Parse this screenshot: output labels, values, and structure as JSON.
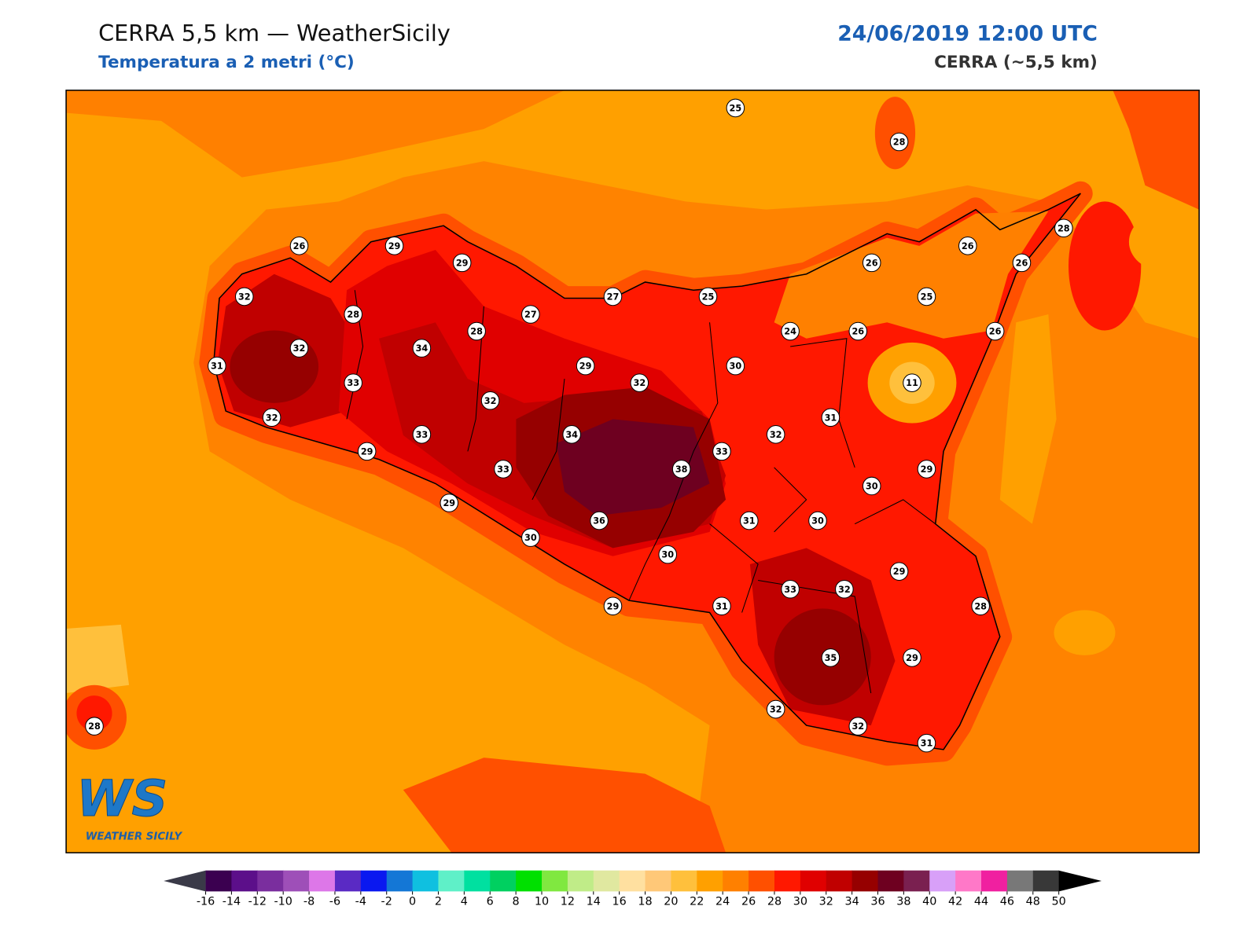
{
  "header": {
    "title": "CERRA 5,5 km — WeatherSicily",
    "subtitle": "Temperatura a 2 metri (°C)",
    "datetime": "24/06/2019 12:00 UTC",
    "model": "CERRA (~5,5 km)"
  },
  "map": {
    "stations": [
      25,
      28,
      26,
      29,
      29,
      28,
      26,
      26,
      26,
      32,
      27,
      25,
      25,
      28,
      27,
      28,
      24,
      26,
      26,
      32,
      34,
      31,
      29,
      30,
      33,
      32,
      11,
      32,
      32,
      31,
      33,
      34,
      32,
      33,
      29,
      33,
      38,
      29,
      30,
      29,
      36,
      31,
      30,
      30,
      30,
      29,
      33,
      32,
      29,
      31,
      28,
      35,
      29,
      28,
      32,
      32,
      31
    ]
  },
  "logo": {
    "mark": "WS",
    "name": "WEATHER SICILY"
  },
  "colorbar": {
    "ticks": [
      -16,
      -14,
      -12,
      -10,
      -8,
      -6,
      -4,
      -2,
      0,
      2,
      4,
      6,
      8,
      10,
      12,
      14,
      16,
      18,
      20,
      22,
      24,
      26,
      28,
      30,
      32,
      34,
      36,
      38,
      40,
      42,
      44,
      46,
      48,
      50
    ],
    "colors": [
      "#3b0050",
      "#5c0f8a",
      "#7a2e9e",
      "#9e4fb8",
      "#dd77e8",
      "#5a2ac4",
      "#0a18f0",
      "#1477d6",
      "#0fc0e0",
      "#5ff0c8",
      "#00e0a0",
      "#00d060",
      "#00e000",
      "#80e840",
      "#c0ec88",
      "#e0e8a0",
      "#ffe0a0",
      "#ffc878",
      "#ffc03c",
      "#ffa000",
      "#ff8000",
      "#ff5000",
      "#ff1800",
      "#e00000",
      "#c00000",
      "#960000",
      "#6e0020",
      "#7a2050",
      "#d8a0f8",
      "#ff78c8",
      "#f020a0",
      "#787878",
      "#383838"
    ],
    "under": "#3a3a48",
    "over": "#000000"
  }
}
